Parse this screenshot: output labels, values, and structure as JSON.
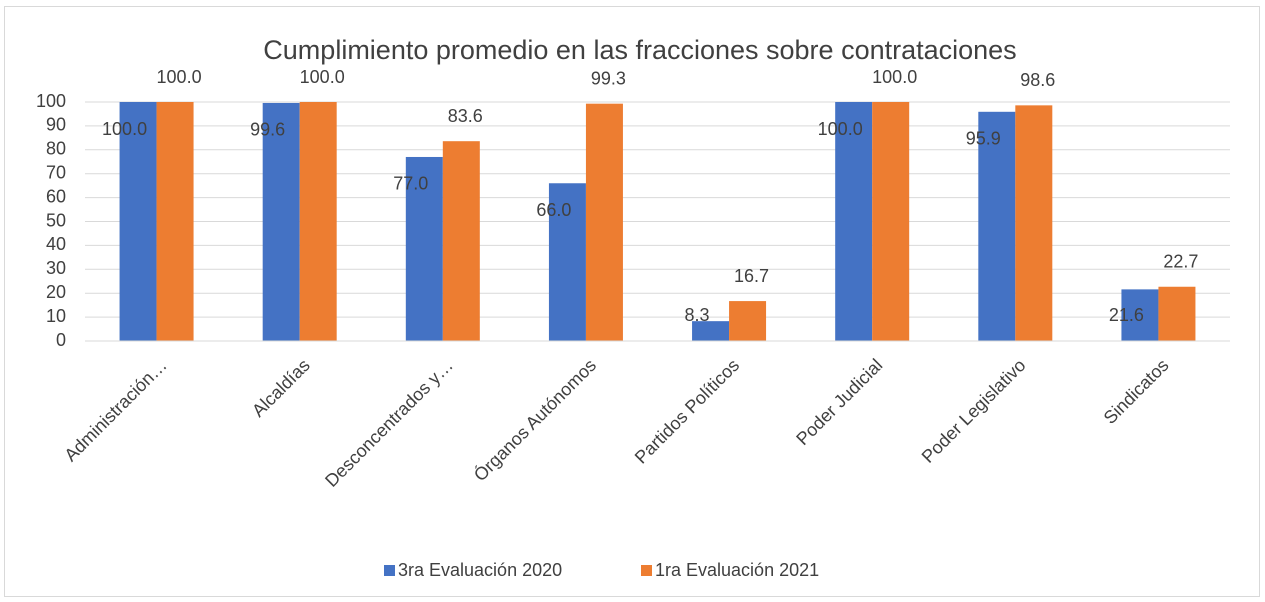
{
  "chart_data": {
    "type": "bar",
    "title": "Cumplimiento promedio en las fracciones sobre contrataciones",
    "categories": [
      "Administración…",
      "Alcaldías",
      "Desconcentrados y…",
      "Órganos Autónomos",
      "Partidos Políticos",
      "Poder Judicial",
      "Poder Legislativo",
      "Sindicatos"
    ],
    "series": [
      {
        "name": "3ra Evaluación 2020",
        "color": "#4472c4",
        "values": [
          100,
          99.6,
          77,
          66,
          8.3,
          100,
          95.9,
          21.6
        ],
        "value_labels": [
          "100.0",
          "99.6",
          "77.0",
          "66.0",
          "8.3",
          "100.0",
          "95.9",
          "21.6"
        ]
      },
      {
        "name": "1ra Evaluación 2021",
        "color": "#ed7d31",
        "values": [
          100,
          100,
          83.6,
          99.3,
          16.7,
          100,
          98.6,
          22.7
        ],
        "value_labels": [
          "100.0",
          "100.0",
          "83.6",
          "99.3",
          "16.7",
          "100.0",
          "98.6",
          "22.7"
        ]
      }
    ],
    "ylim": [
      0,
      100
    ],
    "yticks": [
      0,
      10,
      20,
      30,
      40,
      50,
      60,
      70,
      80,
      90,
      100
    ],
    "grid": true,
    "legend": "bottom"
  }
}
